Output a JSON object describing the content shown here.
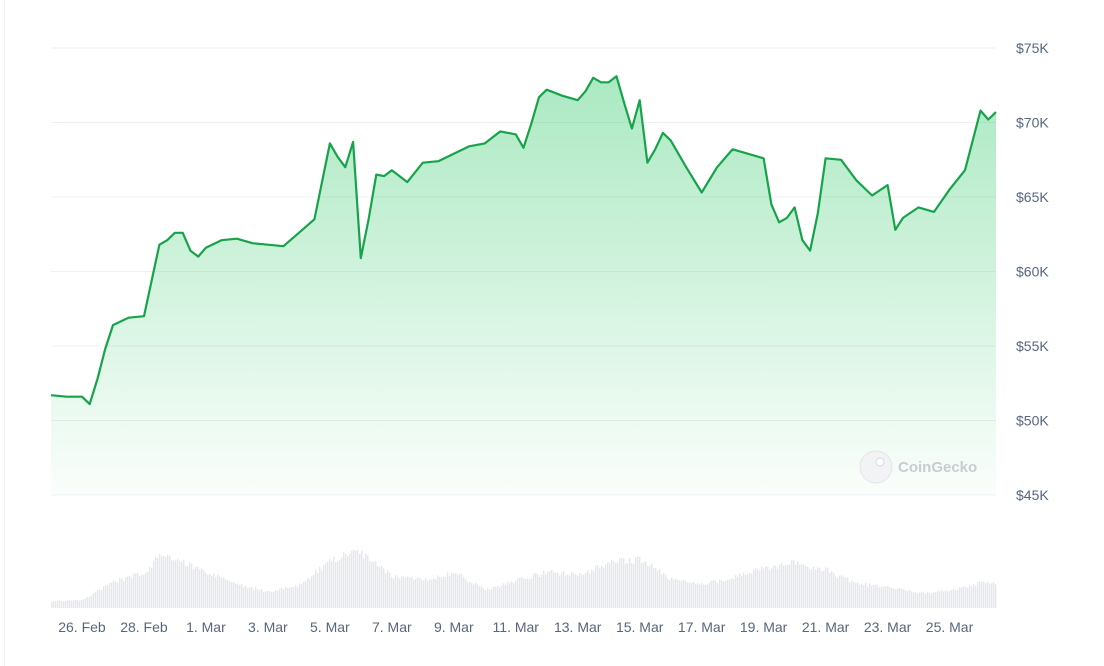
{
  "chart_data": {
    "type": "area",
    "watermark": "CoinGecko",
    "colors": {
      "line": "#16a34a",
      "fill": "#22c55e",
      "volume": "#e5e7eb",
      "grid": "#eef0f3",
      "text": "#58667e"
    },
    "ylim": [
      45000,
      75000
    ],
    "y_ticks": [
      {
        "value": 75000,
        "label": "$75K"
      },
      {
        "value": 70000,
        "label": "$70K"
      },
      {
        "value": 65000,
        "label": "$65K"
      },
      {
        "value": 60000,
        "label": "$60K"
      },
      {
        "value": 55000,
        "label": "$55K"
      },
      {
        "value": 50000,
        "label": "$50K"
      },
      {
        "value": 45000,
        "label": "$45K"
      }
    ],
    "x_range": [
      "2024-02-25",
      "2024-03-26"
    ],
    "x_ticks": [
      {
        "date": "2024-02-26",
        "label": "26. Feb"
      },
      {
        "date": "2024-02-28",
        "label": "28. Feb"
      },
      {
        "date": "2024-03-01",
        "label": "1. Mar"
      },
      {
        "date": "2024-03-03",
        "label": "3. Mar"
      },
      {
        "date": "2024-03-05",
        "label": "5. Mar"
      },
      {
        "date": "2024-03-07",
        "label": "7. Mar"
      },
      {
        "date": "2024-03-09",
        "label": "9. Mar"
      },
      {
        "date": "2024-03-11",
        "label": "11. Mar"
      },
      {
        "date": "2024-03-13",
        "label": "13. Mar"
      },
      {
        "date": "2024-03-15",
        "label": "15. Mar"
      },
      {
        "date": "2024-03-17",
        "label": "17. Mar"
      },
      {
        "date": "2024-03-19",
        "label": "19. Mar"
      },
      {
        "date": "2024-03-21",
        "label": "21. Mar"
      },
      {
        "date": "2024-03-23",
        "label": "23. Mar"
      },
      {
        "date": "2024-03-25",
        "label": "25. Mar"
      }
    ],
    "series": [
      {
        "values": [
          [
            "2024-02-25",
            51700
          ],
          [
            "2024-02-25T12:00",
            51600
          ],
          [
            "2024-02-26",
            51600
          ],
          [
            "2024-02-26T06:00",
            51100
          ],
          [
            "2024-02-26T12:00",
            52800
          ],
          [
            "2024-02-26T18:00",
            54800
          ],
          [
            "2024-02-27",
            56400
          ],
          [
            "2024-02-27T12:00",
            56900
          ],
          [
            "2024-02-28",
            57000
          ],
          [
            "2024-02-28T06:00",
            59400
          ],
          [
            "2024-02-28T12:00",
            61800
          ],
          [
            "2024-02-28T18:00",
            62100
          ],
          [
            "2024-02-29",
            62600
          ],
          [
            "2024-02-29T06:00",
            62600
          ],
          [
            "2024-02-29T12:00",
            61400
          ],
          [
            "2024-02-29T18:00",
            61000
          ],
          [
            "2024-03-01",
            61600
          ],
          [
            "2024-03-01T12:00",
            62100
          ],
          [
            "2024-03-02",
            62200
          ],
          [
            "2024-03-02T12:00",
            61900
          ],
          [
            "2024-03-03",
            61800
          ],
          [
            "2024-03-03T12:00",
            61700
          ],
          [
            "2024-03-04",
            62600
          ],
          [
            "2024-03-04T12:00",
            63500
          ],
          [
            "2024-03-05",
            68600
          ],
          [
            "2024-03-05T06:00",
            67700
          ],
          [
            "2024-03-05T12:00",
            67000
          ],
          [
            "2024-03-05T18:00",
            68700
          ],
          [
            "2024-03-06",
            60900
          ],
          [
            "2024-03-06T06:00",
            63500
          ],
          [
            "2024-03-06T12:00",
            66500
          ],
          [
            "2024-03-06T18:00",
            66400
          ],
          [
            "2024-03-07",
            66800
          ],
          [
            "2024-03-07T12:00",
            66000
          ],
          [
            "2024-03-08",
            67300
          ],
          [
            "2024-03-08T12:00",
            67400
          ],
          [
            "2024-03-09",
            67900
          ],
          [
            "2024-03-09T12:00",
            68400
          ],
          [
            "2024-03-10",
            68600
          ],
          [
            "2024-03-10T12:00",
            69400
          ],
          [
            "2024-03-11",
            69200
          ],
          [
            "2024-03-11T06:00",
            68300
          ],
          [
            "2024-03-11T12:00",
            69900
          ],
          [
            "2024-03-11T18:00",
            71700
          ],
          [
            "2024-03-12",
            72200
          ],
          [
            "2024-03-12T12:00",
            71800
          ],
          [
            "2024-03-13",
            71500
          ],
          [
            "2024-03-13T06:00",
            72100
          ],
          [
            "2024-03-13T12:00",
            73000
          ],
          [
            "2024-03-13T18:00",
            72700
          ],
          [
            "2024-03-14",
            72700
          ],
          [
            "2024-03-14T06:00",
            73100
          ],
          [
            "2024-03-14T12:00",
            71300
          ],
          [
            "2024-03-14T18:00",
            69600
          ],
          [
            "2024-03-15",
            71500
          ],
          [
            "2024-03-15T06:00",
            67300
          ],
          [
            "2024-03-15T12:00",
            68200
          ],
          [
            "2024-03-15T18:00",
            69300
          ],
          [
            "2024-03-16",
            68800
          ],
          [
            "2024-03-16T12:00",
            67000
          ],
          [
            "2024-03-17",
            65300
          ],
          [
            "2024-03-17T12:00",
            67000
          ],
          [
            "2024-03-18",
            68200
          ],
          [
            "2024-03-18T12:00",
            67900
          ],
          [
            "2024-03-19",
            67600
          ],
          [
            "2024-03-19T06:00",
            64500
          ],
          [
            "2024-03-19T12:00",
            63300
          ],
          [
            "2024-03-19T18:00",
            63600
          ],
          [
            "2024-03-20",
            64300
          ],
          [
            "2024-03-20T06:00",
            62100
          ],
          [
            "2024-03-20T12:00",
            61400
          ],
          [
            "2024-03-20T18:00",
            63900
          ],
          [
            "2024-03-21",
            67600
          ],
          [
            "2024-03-21T12:00",
            67500
          ],
          [
            "2024-03-22",
            66100
          ],
          [
            "2024-03-22T12:00",
            65100
          ],
          [
            "2024-03-23",
            65800
          ],
          [
            "2024-03-23T06:00",
            62800
          ],
          [
            "2024-03-23T12:00",
            63600
          ],
          [
            "2024-03-24",
            64300
          ],
          [
            "2024-03-24T12:00",
            64000
          ],
          [
            "2024-03-25",
            65500
          ],
          [
            "2024-03-25T12:00",
            66800
          ],
          [
            "2024-03-26",
            70800
          ],
          [
            "2024-03-26T06:00",
            70200
          ],
          [
            "2024-03-26T12:00",
            70700
          ]
        ]
      }
    ],
    "volume": {
      "note_dates": "relative trading volume, same x axis as price",
      "values": [
        [
          "2024-02-25",
          0.12
        ],
        [
          "2024-02-26",
          0.14
        ],
        [
          "2024-02-26T12:00",
          0.3
        ],
        [
          "2024-02-27",
          0.45
        ],
        [
          "2024-02-28",
          0.62
        ],
        [
          "2024-02-28T12:00",
          0.92
        ],
        [
          "2024-02-29",
          0.86
        ],
        [
          "2024-03-01",
          0.62
        ],
        [
          "2024-03-02",
          0.42
        ],
        [
          "2024-03-03",
          0.28
        ],
        [
          "2024-03-04",
          0.4
        ],
        [
          "2024-03-05",
          0.82
        ],
        [
          "2024-03-05T18:00",
          1.0
        ],
        [
          "2024-03-06",
          0.95
        ],
        [
          "2024-03-07",
          0.55
        ],
        [
          "2024-03-08",
          0.5
        ],
        [
          "2024-03-09",
          0.62
        ],
        [
          "2024-03-10",
          0.32
        ],
        [
          "2024-03-11",
          0.48
        ],
        [
          "2024-03-12",
          0.62
        ],
        [
          "2024-03-13",
          0.58
        ],
        [
          "2024-03-14",
          0.78
        ],
        [
          "2024-03-15",
          0.85
        ],
        [
          "2024-03-16",
          0.5
        ],
        [
          "2024-03-17",
          0.42
        ],
        [
          "2024-03-18",
          0.52
        ],
        [
          "2024-03-19",
          0.7
        ],
        [
          "2024-03-20",
          0.78
        ],
        [
          "2024-03-21",
          0.66
        ],
        [
          "2024-03-22",
          0.42
        ],
        [
          "2024-03-23",
          0.36
        ],
        [
          "2024-03-24",
          0.26
        ],
        [
          "2024-03-25",
          0.3
        ],
        [
          "2024-03-26",
          0.44
        ],
        [
          "2024-03-26T12:00",
          0.42
        ]
      ]
    }
  }
}
